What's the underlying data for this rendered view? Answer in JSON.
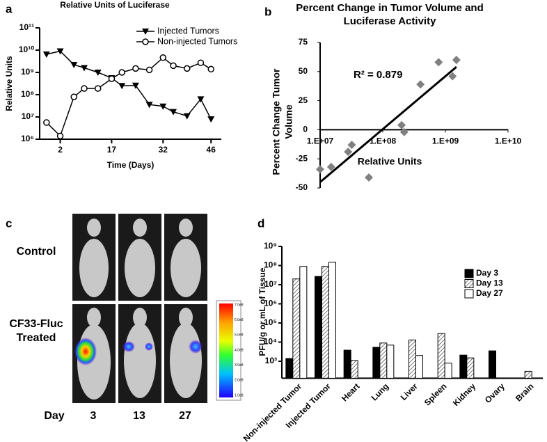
{
  "chart_data": [
    {
      "type": "line",
      "panel_label": "a",
      "title": "Relative Units of Luciferase",
      "x_label": "Time (Days)",
      "y_label": "Relative Units",
      "x": [
        -2,
        2,
        6,
        9,
        13,
        17,
        20,
        24,
        28,
        32,
        35,
        39,
        43,
        46
      ],
      "series": [
        {
          "name": "Injected Tumors",
          "color": "#000000",
          "marker": "triangle-down",
          "values": [
            6500000000,
            9000000000,
            2200000000,
            1600000000,
            1000000000,
            560000000,
            250000000,
            260000000,
            36000000,
            30000000,
            17000000,
            11000000,
            63000000,
            8000000
          ]
        },
        {
          "name": "Non-injected Tumors",
          "color": "#000000",
          "marker": "circle-open",
          "values": [
            5600000,
            1400000,
            80000000,
            190000000,
            190000000,
            520000000,
            1000000000,
            1500000000,
            1300000000,
            4600000000,
            2000000000,
            1500000000,
            2700000000,
            1400000000
          ]
        }
      ],
      "xlim": [
        -4,
        49
      ],
      "xticks": [
        2,
        17,
        32,
        46
      ],
      "ylim": [
        1000000,
        100000000000
      ],
      "log_y": true,
      "yticks": [
        {
          "value": 1000000,
          "label": "10⁶"
        },
        {
          "value": 10000000,
          "label": "10⁷"
        },
        {
          "value": 100000000,
          "label": "10⁸"
        },
        {
          "value": 1000000000,
          "label": "10⁹"
        },
        {
          "value": 10000000000,
          "label": "10¹⁰"
        },
        {
          "value": 100000000000,
          "label": "10¹¹"
        }
      ],
      "legend": "upper right"
    },
    {
      "type": "scatter",
      "panel_label": "b",
      "title": [
        "Percent Change in Tumor Volume and",
        "Luciferase Activity"
      ],
      "x_label": "Relative Units",
      "y_label": [
        "Percent Change Tumor",
        "Volume"
      ],
      "x": [
        10000000,
        15000000,
        28000000,
        32000000,
        60000000,
        200000000,
        220000000,
        400000000,
        780000000,
        1300000000,
        1500000000
      ],
      "values": [
        -34,
        -32,
        -19,
        -13,
        -41,
        4,
        -2,
        39,
        58,
        46,
        60
      ],
      "color": "#808080",
      "marker": "diamond",
      "trendline": {
        "x": [
          10000000,
          1500000000
        ],
        "y": [
          -45,
          54
        ]
      },
      "annotation": "R² = 0.879",
      "log_x": true,
      "xlim": [
        10000000,
        10000000000
      ],
      "xticks": [
        {
          "value": 10000000,
          "label": "1.E+07"
        },
        {
          "value": 100000000,
          "label": "1.E+08"
        },
        {
          "value": 1000000000,
          "label": "1.E+09"
        },
        {
          "value": 10000000000,
          "label": "1.E+10"
        }
      ],
      "ylim": [
        -50,
        75
      ],
      "yticks": [
        -50,
        -25,
        0,
        25,
        50,
        75
      ]
    },
    {
      "type": "bar",
      "panel_label": "d",
      "y_label": "PFU/g or mL of Tissue",
      "categories": [
        "Non-injected Tumor",
        "Injected Tumor",
        "Heart",
        "Lung",
        "Liver",
        "Spleen",
        "Kidney",
        "Ovary",
        "Brain"
      ],
      "series": [
        {
          "name": "Day 3",
          "color": "#000000",
          "values": [
            1400,
            27000000,
            3800,
            5400,
            null,
            null,
            2100,
            3500,
            null
          ]
        },
        {
          "name": "Day 13",
          "color": "#ffffff",
          "pattern": "hatch",
          "values": [
            20000000,
            90000000,
            1100,
            9000,
            13000,
            28000,
            1500,
            null,
            300
          ]
        },
        {
          "name": "Day 27",
          "color": "#ffffff",
          "values": [
            90000000,
            150000000,
            null,
            7000,
            2000,
            800,
            null,
            null,
            null
          ]
        }
      ],
      "ylim": [
        130,
        1000000000
      ],
      "log_y": true,
      "yticks": [
        {
          "value": 1000,
          "label": "10³"
        },
        {
          "value": 10000,
          "label": "10⁴"
        },
        {
          "value": 100000,
          "label": "10⁵"
        },
        {
          "value": 1000000,
          "label": "10⁶"
        },
        {
          "value": 10000000,
          "label": "10⁷"
        },
        {
          "value": 100000000,
          "label": "10⁸"
        },
        {
          "value": 1000000000,
          "label": "10⁹"
        }
      ],
      "legend": "upper right"
    }
  ],
  "image_panel": {
    "panel_label": "c",
    "control_label": "Control",
    "treated_label": [
      "CF33-Fluc",
      "Treated"
    ],
    "day_label": "Day",
    "days": [
      "3",
      "13",
      "27"
    ],
    "colorbar_labels": [
      "7.0e8",
      "6.0e8",
      "5.0e8",
      "4.0e8",
      "3.0e8",
      "2.0e8",
      "1.0e8"
    ]
  }
}
